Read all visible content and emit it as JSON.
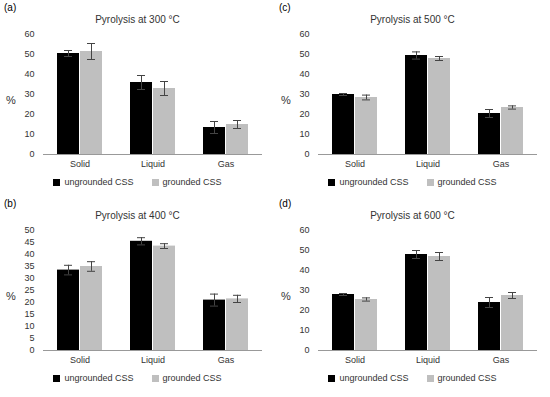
{
  "chart_data": [
    {
      "type": "bar",
      "panel_label": "(a)",
      "title": "Pyrolysis at 300 °C",
      "y_label": "%",
      "categories": [
        "Solid",
        "Liquid",
        "Gas"
      ],
      "series": [
        {
          "name": "ungrounded CSS",
          "color": "#000000",
          "values": [
            50.5,
            36,
            13.5
          ],
          "errors": [
            1.5,
            3.5,
            3
          ]
        },
        {
          "name": "grounded CSS",
          "color": "#bfbfbf",
          "values": [
            51.5,
            33,
            15
          ],
          "errors": [
            4,
            3.5,
            2
          ]
        }
      ],
      "ylim": [
        0,
        60
      ],
      "yticks": [
        0,
        10,
        20,
        30,
        40,
        50,
        60
      ],
      "grid": false,
      "legend": "bottom"
    },
    {
      "type": "bar",
      "panel_label": "(b)",
      "title": "Pyrolysis at 400 °C",
      "y_label": "%",
      "categories": [
        "Solid",
        "Liquid",
        "Gas"
      ],
      "series": [
        {
          "name": "ungrounded CSS",
          "color": "#000000",
          "values": [
            33.5,
            45.5,
            21
          ],
          "errors": [
            2,
            1.5,
            2.5
          ]
        },
        {
          "name": "grounded CSS",
          "color": "#bfbfbf",
          "values": [
            35,
            43.5,
            21.5
          ],
          "errors": [
            2,
            1,
            1.5
          ]
        }
      ],
      "ylim": [
        0,
        50
      ],
      "yticks": [
        0,
        5,
        10,
        15,
        20,
        25,
        30,
        35,
        40,
        45,
        50
      ],
      "grid": false,
      "legend": "bottom"
    },
    {
      "type": "bar",
      "panel_label": "(c)",
      "title": "Pyrolysis at 500 °C",
      "y_label": "%",
      "categories": [
        "Solid",
        "Liquid",
        "Gas"
      ],
      "series": [
        {
          "name": "ungrounded CSS",
          "color": "#000000",
          "values": [
            30,
            49.5,
            20.5
          ],
          "errors": [
            0.5,
            1.8,
            2
          ]
        },
        {
          "name": "grounded CSS",
          "color": "#bfbfbf",
          "values": [
            28.5,
            48,
            23.5
          ],
          "errors": [
            1.2,
            1,
            0.8
          ]
        }
      ],
      "ylim": [
        0,
        60
      ],
      "yticks": [
        0,
        10,
        20,
        30,
        40,
        50,
        60
      ],
      "grid": false,
      "legend": "bottom"
    },
    {
      "type": "bar",
      "panel_label": "(d)",
      "title": "Pyrolysis at 600 °C",
      "y_label": "%",
      "categories": [
        "Solid",
        "Liquid",
        "Gas"
      ],
      "series": [
        {
          "name": "ungrounded CSS",
          "color": "#000000",
          "values": [
            28,
            48,
            24
          ],
          "errors": [
            0.5,
            2,
            2.5
          ]
        },
        {
          "name": "grounded CSS",
          "color": "#bfbfbf",
          "values": [
            25.5,
            47,
            27.5
          ],
          "errors": [
            0.8,
            2,
            1.5
          ]
        }
      ],
      "ylim": [
        0,
        60
      ],
      "yticks": [
        0,
        10,
        20,
        30,
        40,
        50,
        60
      ],
      "grid": false,
      "legend": "bottom"
    }
  ]
}
